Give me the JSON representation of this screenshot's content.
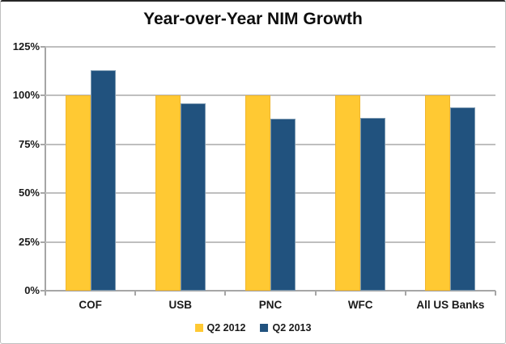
{
  "chart_data": {
    "type": "bar",
    "title": "Year-over-Year NIM Growth",
    "categories": [
      "COF",
      "USB",
      "PNC",
      "WFC",
      "All US Banks"
    ],
    "series": [
      {
        "name": "Q2 2012",
        "color": "#ffc933",
        "values": [
          100,
          100,
          100,
          100,
          100
        ]
      },
      {
        "name": "Q2 2013",
        "color": "#21527e",
        "values": [
          113,
          96,
          88,
          88.5,
          94
        ]
      }
    ],
    "xlabel": "",
    "ylabel": "",
    "ylim": [
      0,
      125
    ],
    "ytick_step": 25,
    "ytick_labels": [
      "0%",
      "25%",
      "50%",
      "75%",
      "100%",
      "125%"
    ],
    "grid": true,
    "legend_position": "bottom-center",
    "gridline_color": "#bfbfbf",
    "axis_color": "#a6a6a6",
    "text_color": "#1a1a1a"
  }
}
